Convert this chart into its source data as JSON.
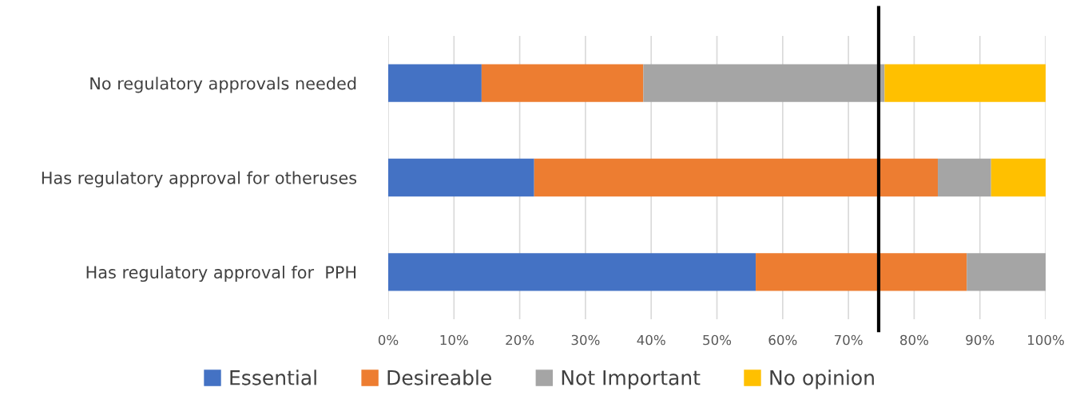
{
  "chart_data": {
    "type": "bar",
    "orientation": "horizontal",
    "stacked": true,
    "categories": [
      "No regulatory approvals needed",
      "Has regulatory approval for otheruses",
      "Has regulatory approval for  PPH"
    ],
    "series": [
      {
        "name": "Essential",
        "color": "#4472c4",
        "values": [
          14.2,
          22.2,
          55.9
        ]
      },
      {
        "name": "Desireable",
        "color": "#ed7d31",
        "values": [
          24.6,
          61.4,
          32.1
        ]
      },
      {
        "name": "Not Important",
        "color": "#a5a5a5",
        "values": [
          36.7,
          8.1,
          12.0
        ]
      },
      {
        "name": "No opinion",
        "color": "#ffc000",
        "values": [
          24.5,
          8.3,
          null
        ]
      }
    ],
    "xlim": [
      0,
      100
    ],
    "xticks": [
      {
        "value": 0,
        "label": "0%"
      },
      {
        "value": 10,
        "label": "10%"
      },
      {
        "value": 20,
        "label": "20%"
      },
      {
        "value": 30,
        "label": "30%"
      },
      {
        "value": 40,
        "label": "40%"
      },
      {
        "value": 50,
        "label": "50%"
      },
      {
        "value": 60,
        "label": "60%"
      },
      {
        "value": 70,
        "label": "70%"
      },
      {
        "value": 80,
        "label": "80%"
      },
      {
        "value": 90,
        "label": "90%"
      },
      {
        "value": 100,
        "label": "100%"
      }
    ],
    "ref_lines": [
      {
        "axis": "x",
        "value": 74.6,
        "color": "#000000"
      }
    ],
    "grid": "x",
    "legend": "bottom"
  }
}
